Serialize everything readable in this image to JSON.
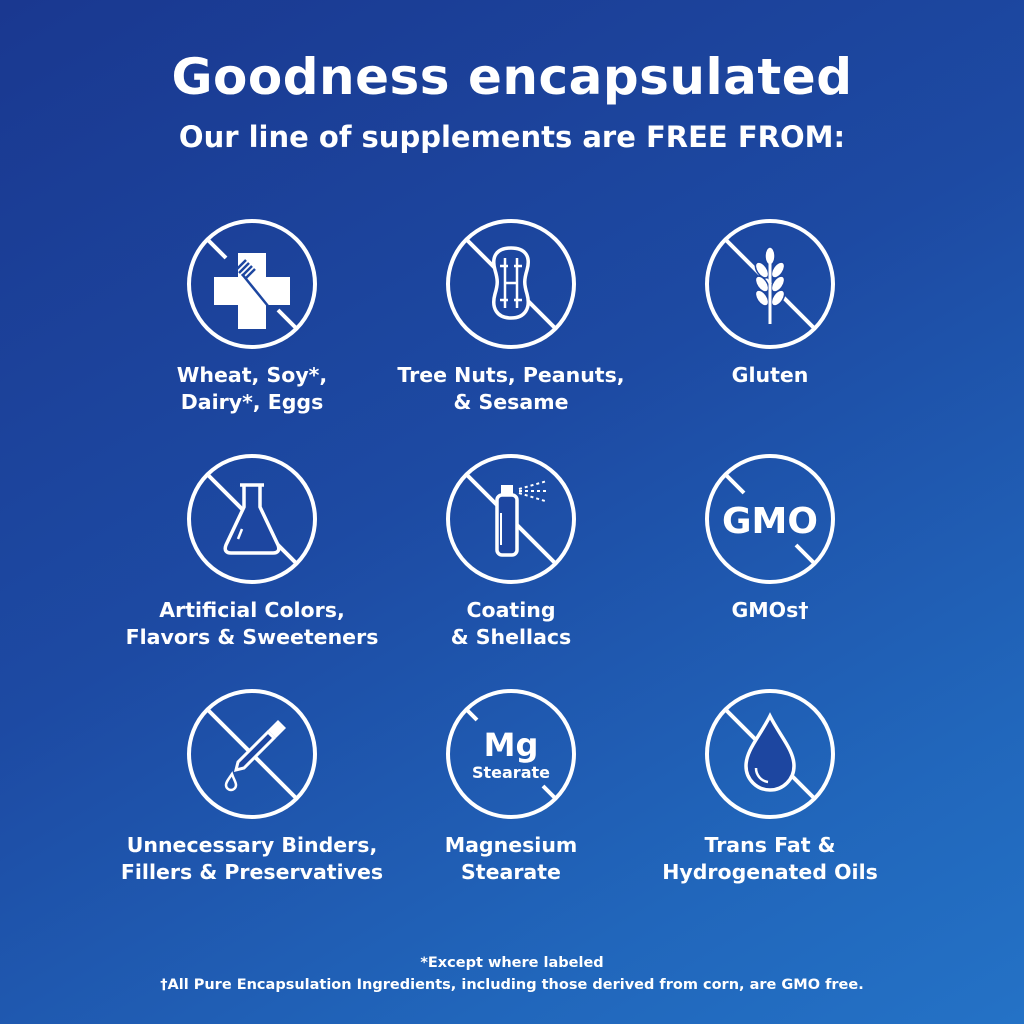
{
  "title": "Goodness encapsulated",
  "subtitle": "Our line of supplements are FREE FROM:",
  "items": [
    {
      "label": "Wheat, Soy*,\nDairy*, Eggs",
      "icon": "allergen-cross-fork-icon"
    },
    {
      "label": "Tree Nuts, Peanuts,\n& Sesame",
      "icon": "peanut-icon"
    },
    {
      "label": "Gluten",
      "icon": "wheat-icon"
    },
    {
      "label": "Artificial Colors,\nFlavors & Sweeteners",
      "icon": "flask-icon"
    },
    {
      "label": "Coating\n& Shellacs",
      "icon": "spray-bottle-icon"
    },
    {
      "label": "GMOs†",
      "icon": "gmo-icon",
      "icon_text": "GMO"
    },
    {
      "label": "Unnecessary Binders,\nFillers & Preservatives",
      "icon": "dropper-icon"
    },
    {
      "label": "Magnesium\nStearate",
      "icon": "mg-stearate-icon",
      "icon_text": "Mg",
      "icon_subtext": "Stearate"
    },
    {
      "label": "Trans Fat &\nHydrogenated Oils",
      "icon": "oil-drop-icon"
    }
  ],
  "footnotes": [
    "*Except where labeled",
    "†All Pure Encapsulation Ingredients, including those derived from corn, are GMO free."
  ],
  "colors": {
    "background_top": "#1a3890",
    "background_bottom": "#2472c6",
    "foreground": "#ffffff"
  }
}
